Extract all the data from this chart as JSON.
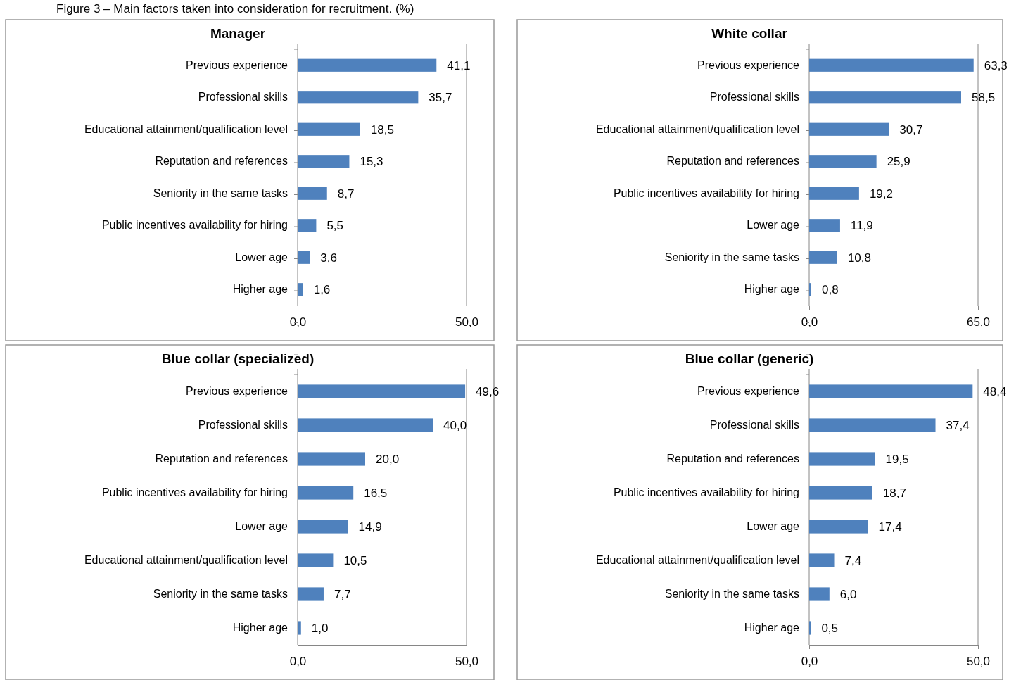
{
  "chart_data": [
    {
      "type": "bar",
      "orientation": "horizontal",
      "title": "Manager",
      "annotations": [
        "Figure 3 – Main factors taken into consideration for recruitment. (%)"
      ],
      "categories": [
        "Previous experience",
        "Professional skills",
        "Educational attainment/qualification level",
        "Reputation and references",
        "Seniority in the same tasks",
        "Public incentives availability for hiring",
        "Lower age",
        "Higher age"
      ],
      "series": [
        {
          "color": "#4f81bd",
          "values": [
            41.1,
            35.7,
            18.5,
            15.3,
            8.7,
            5.5,
            3.6,
            1.6
          ],
          "value_labels": [
            "41,1",
            "35,7",
            "18,5",
            "15,3",
            "8,7",
            "5,5",
            "3,6",
            "1,6"
          ]
        }
      ],
      "xlim": [
        0,
        50
      ],
      "xticks": [
        {
          "value": 0,
          "label": "0,0"
        },
        {
          "value": 50,
          "label": "50,0"
        }
      ]
    },
    {
      "type": "bar",
      "orientation": "horizontal",
      "title": "White collar",
      "categories": [
        "Previous experience",
        "Professional skills",
        "Educational attainment/qualification level",
        "Reputation and references",
        "Public incentives availability for hiring",
        "Lower age",
        "Seniority in the same tasks",
        "Higher age"
      ],
      "series": [
        {
          "color": "#4f81bd",
          "values": [
            63.3,
            58.5,
            30.7,
            25.9,
            19.2,
            11.9,
            10.8,
            0.8
          ],
          "value_labels": [
            "63,3",
            "58,5",
            "30,7",
            "25,9",
            "19,2",
            "11,9",
            "10,8",
            "0,8"
          ]
        }
      ],
      "xlim": [
        0,
        65
      ],
      "xticks": [
        {
          "value": 0,
          "label": "0,0"
        },
        {
          "value": 65,
          "label": "65,0"
        }
      ]
    },
    {
      "type": "bar",
      "orientation": "horizontal",
      "title": "Blue collar (specialized)",
      "categories": [
        "Previous experience",
        "Professional skills",
        "Reputation and references",
        "Public incentives availability for hiring",
        "Lower age",
        "Educational attainment/qualification level",
        "Seniority in the same tasks",
        "Higher age"
      ],
      "series": [
        {
          "color": "#4f81bd",
          "values": [
            49.6,
            40.0,
            20.0,
            16.5,
            14.9,
            10.5,
            7.7,
            1.0
          ],
          "value_labels": [
            "49,6",
            "40,0",
            "20,0",
            "16,5",
            "14,9",
            "10,5",
            "7,7",
            "1,0"
          ]
        }
      ],
      "xlim": [
        0,
        50
      ],
      "xticks": [
        {
          "value": 0,
          "label": "0,0"
        },
        {
          "value": 50,
          "label": "50,0"
        }
      ]
    },
    {
      "type": "bar",
      "orientation": "horizontal",
      "title": "Blue collar (generic)",
      "categories": [
        "Previous experience",
        "Professional skills",
        "Reputation and references",
        "Public incentives availability for hiring",
        "Lower age",
        "Educational attainment/qualification level",
        "Seniority in the same tasks",
        "Higher age"
      ],
      "series": [
        {
          "color": "#4f81bd",
          "values": [
            48.4,
            37.4,
            19.5,
            18.7,
            17.4,
            7.4,
            6.0,
            0.5
          ],
          "value_labels": [
            "48,4",
            "37,4",
            "19,5",
            "18,7",
            "17,4",
            "7,4",
            "6,0",
            "0,5"
          ]
        }
      ],
      "xlim": [
        0,
        50
      ],
      "xticks": [
        {
          "value": 0,
          "label": "0,0"
        },
        {
          "value": 50,
          "label": "50,0"
        }
      ]
    }
  ]
}
